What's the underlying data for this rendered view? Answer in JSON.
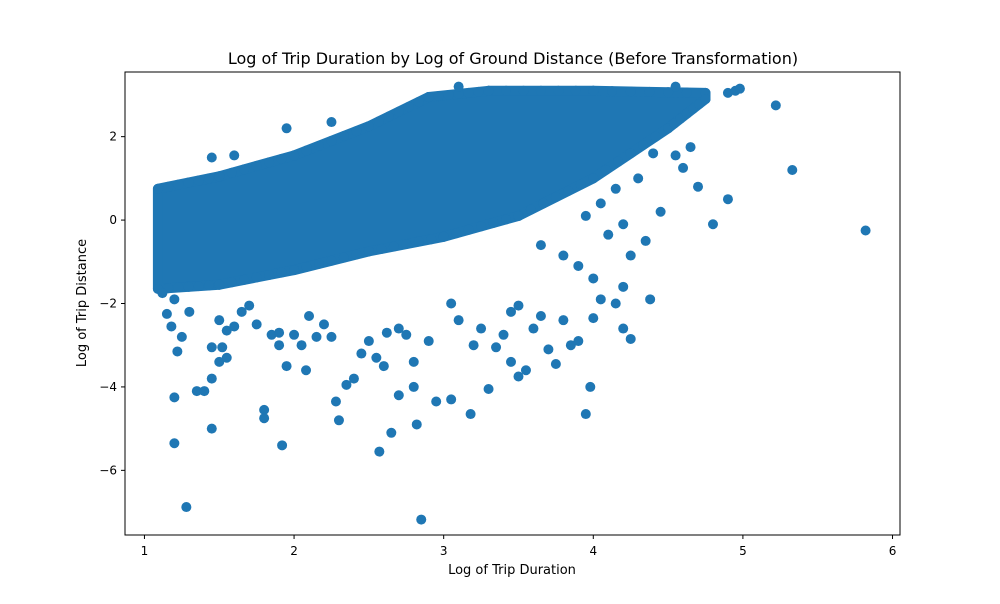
{
  "chart_data": {
    "type": "scatter",
    "title": "Log of Trip Duration by Log of Ground Distance (Before Transformation)",
    "xlabel": "Log of Trip Duration",
    "ylabel": "Log of Trip Distance",
    "xlim": [
      0.87,
      6.05
    ],
    "ylim": [
      -7.55,
      3.55
    ],
    "xticks": [
      1,
      2,
      3,
      4,
      5,
      6
    ],
    "yticks": [
      -6,
      -4,
      -2,
      0,
      2
    ],
    "grid": false,
    "marker_color": "#1f77b4",
    "main_band": {
      "description_note": "",
      "x_min": 1.09,
      "x_max": 4.75,
      "upper_edge": [
        [
          1.09,
          0.75
        ],
        [
          1.5,
          1.05
        ],
        [
          2.0,
          1.55
        ],
        [
          2.5,
          2.25
        ],
        [
          2.9,
          2.95
        ],
        [
          3.3,
          3.1
        ],
        [
          4.0,
          3.1
        ],
        [
          4.75,
          3.05
        ]
      ],
      "lower_edge": [
        [
          1.09,
          -1.65
        ],
        [
          1.5,
          -1.55
        ],
        [
          2.0,
          -1.2
        ],
        [
          2.5,
          -0.75
        ],
        [
          3.0,
          -0.4
        ],
        [
          3.5,
          0.1
        ],
        [
          4.0,
          1.0
        ],
        [
          4.5,
          2.2
        ],
        [
          4.75,
          2.9
        ]
      ]
    },
    "points": [
      [
        1.12,
        -1.75
      ],
      [
        1.15,
        -2.25
      ],
      [
        1.18,
        -2.55
      ],
      [
        1.2,
        -1.9
      ],
      [
        1.25,
        -2.8
      ],
      [
        1.3,
        -2.2
      ],
      [
        1.2,
        -4.25
      ],
      [
        1.2,
        -5.35
      ],
      [
        1.22,
        -3.15
      ],
      [
        1.28,
        -6.88
      ],
      [
        1.35,
        -4.1
      ],
      [
        1.4,
        -4.1
      ],
      [
        1.45,
        -3.8
      ],
      [
        1.45,
        -3.05
      ],
      [
        1.45,
        -5.0
      ],
      [
        1.5,
        -3.4
      ],
      [
        1.52,
        -3.05
      ],
      [
        1.55,
        -3.3
      ],
      [
        1.5,
        -2.4
      ],
      [
        1.55,
        -2.65
      ],
      [
        1.6,
        -2.55
      ],
      [
        1.65,
        -2.2
      ],
      [
        1.7,
        -2.05
      ],
      [
        1.75,
        -2.5
      ],
      [
        1.8,
        -4.55
      ],
      [
        1.8,
        -4.75
      ],
      [
        1.85,
        -2.75
      ],
      [
        1.9,
        -3.0
      ],
      [
        1.92,
        -5.4
      ],
      [
        1.9,
        -2.7
      ],
      [
        1.95,
        -3.5
      ],
      [
        2.0,
        -2.75
      ],
      [
        2.05,
        -3.0
      ],
      [
        2.08,
        -3.6
      ],
      [
        2.1,
        -2.3
      ],
      [
        2.15,
        -2.8
      ],
      [
        2.2,
        -2.5
      ],
      [
        2.25,
        -2.8
      ],
      [
        2.28,
        -4.35
      ],
      [
        2.3,
        -4.8
      ],
      [
        2.35,
        -3.95
      ],
      [
        2.4,
        -3.8
      ],
      [
        2.45,
        -3.2
      ],
      [
        2.5,
        -2.9
      ],
      [
        2.55,
        -3.3
      ],
      [
        2.57,
        -5.55
      ],
      [
        2.6,
        -3.5
      ],
      [
        2.62,
        -2.7
      ],
      [
        2.65,
        -5.1
      ],
      [
        2.7,
        -2.6
      ],
      [
        2.7,
        -4.2
      ],
      [
        2.75,
        -2.75
      ],
      [
        2.8,
        -4.0
      ],
      [
        2.8,
        -3.4
      ],
      [
        2.82,
        -4.9
      ],
      [
        2.85,
        -7.18
      ],
      [
        2.9,
        -2.9
      ],
      [
        2.95,
        -4.35
      ],
      [
        3.05,
        -4.3
      ],
      [
        3.05,
        -2.0
      ],
      [
        3.1,
        -2.4
      ],
      [
        3.18,
        -4.65
      ],
      [
        3.2,
        -3.0
      ],
      [
        3.25,
        -2.6
      ],
      [
        3.3,
        -4.05
      ],
      [
        3.35,
        -3.05
      ],
      [
        3.4,
        -2.75
      ],
      [
        3.45,
        -3.4
      ],
      [
        3.45,
        -2.2
      ],
      [
        3.5,
        -2.05
      ],
      [
        3.5,
        -3.75
      ],
      [
        3.55,
        -3.6
      ],
      [
        3.6,
        -2.6
      ],
      [
        3.65,
        -2.3
      ],
      [
        3.7,
        -3.1
      ],
      [
        3.75,
        -3.45
      ],
      [
        3.8,
        -2.4
      ],
      [
        3.85,
        -3.0
      ],
      [
        3.9,
        -2.9
      ],
      [
        3.95,
        -4.65
      ],
      [
        3.98,
        -4.0
      ],
      [
        4.0,
        -2.35
      ],
      [
        4.05,
        -1.9
      ],
      [
        4.15,
        -2.0
      ],
      [
        4.2,
        -2.6
      ],
      [
        4.25,
        -2.85
      ],
      [
        4.38,
        -1.9
      ],
      [
        4.2,
        -1.6
      ],
      [
        4.0,
        -1.4
      ],
      [
        3.9,
        -1.1
      ],
      [
        3.65,
        -0.6
      ],
      [
        3.8,
        -0.85
      ],
      [
        4.1,
        -0.35
      ],
      [
        4.2,
        -0.1
      ],
      [
        4.25,
        -0.85
      ],
      [
        4.35,
        -0.5
      ],
      [
        4.45,
        0.2
      ],
      [
        4.7,
        0.8
      ],
      [
        4.8,
        -0.1
      ],
      [
        4.9,
        0.5
      ],
      [
        5.22,
        2.75
      ],
      [
        5.33,
        1.2
      ],
      [
        5.82,
        -0.25
      ],
      [
        4.9,
        3.05
      ],
      [
        4.95,
        3.1
      ],
      [
        4.98,
        3.15
      ],
      [
        4.6,
        1.25
      ],
      [
        4.55,
        1.55
      ],
      [
        4.65,
        1.75
      ],
      [
        4.4,
        1.6
      ],
      [
        4.3,
        1.0
      ],
      [
        4.15,
        0.75
      ],
      [
        4.05,
        0.4
      ],
      [
        3.95,
        0.1
      ],
      [
        1.6,
        1.55
      ],
      [
        1.95,
        2.2
      ],
      [
        2.25,
        2.35
      ],
      [
        1.45,
        1.5
      ],
      [
        3.1,
        3.2
      ],
      [
        4.55,
        3.2
      ]
    ]
  }
}
